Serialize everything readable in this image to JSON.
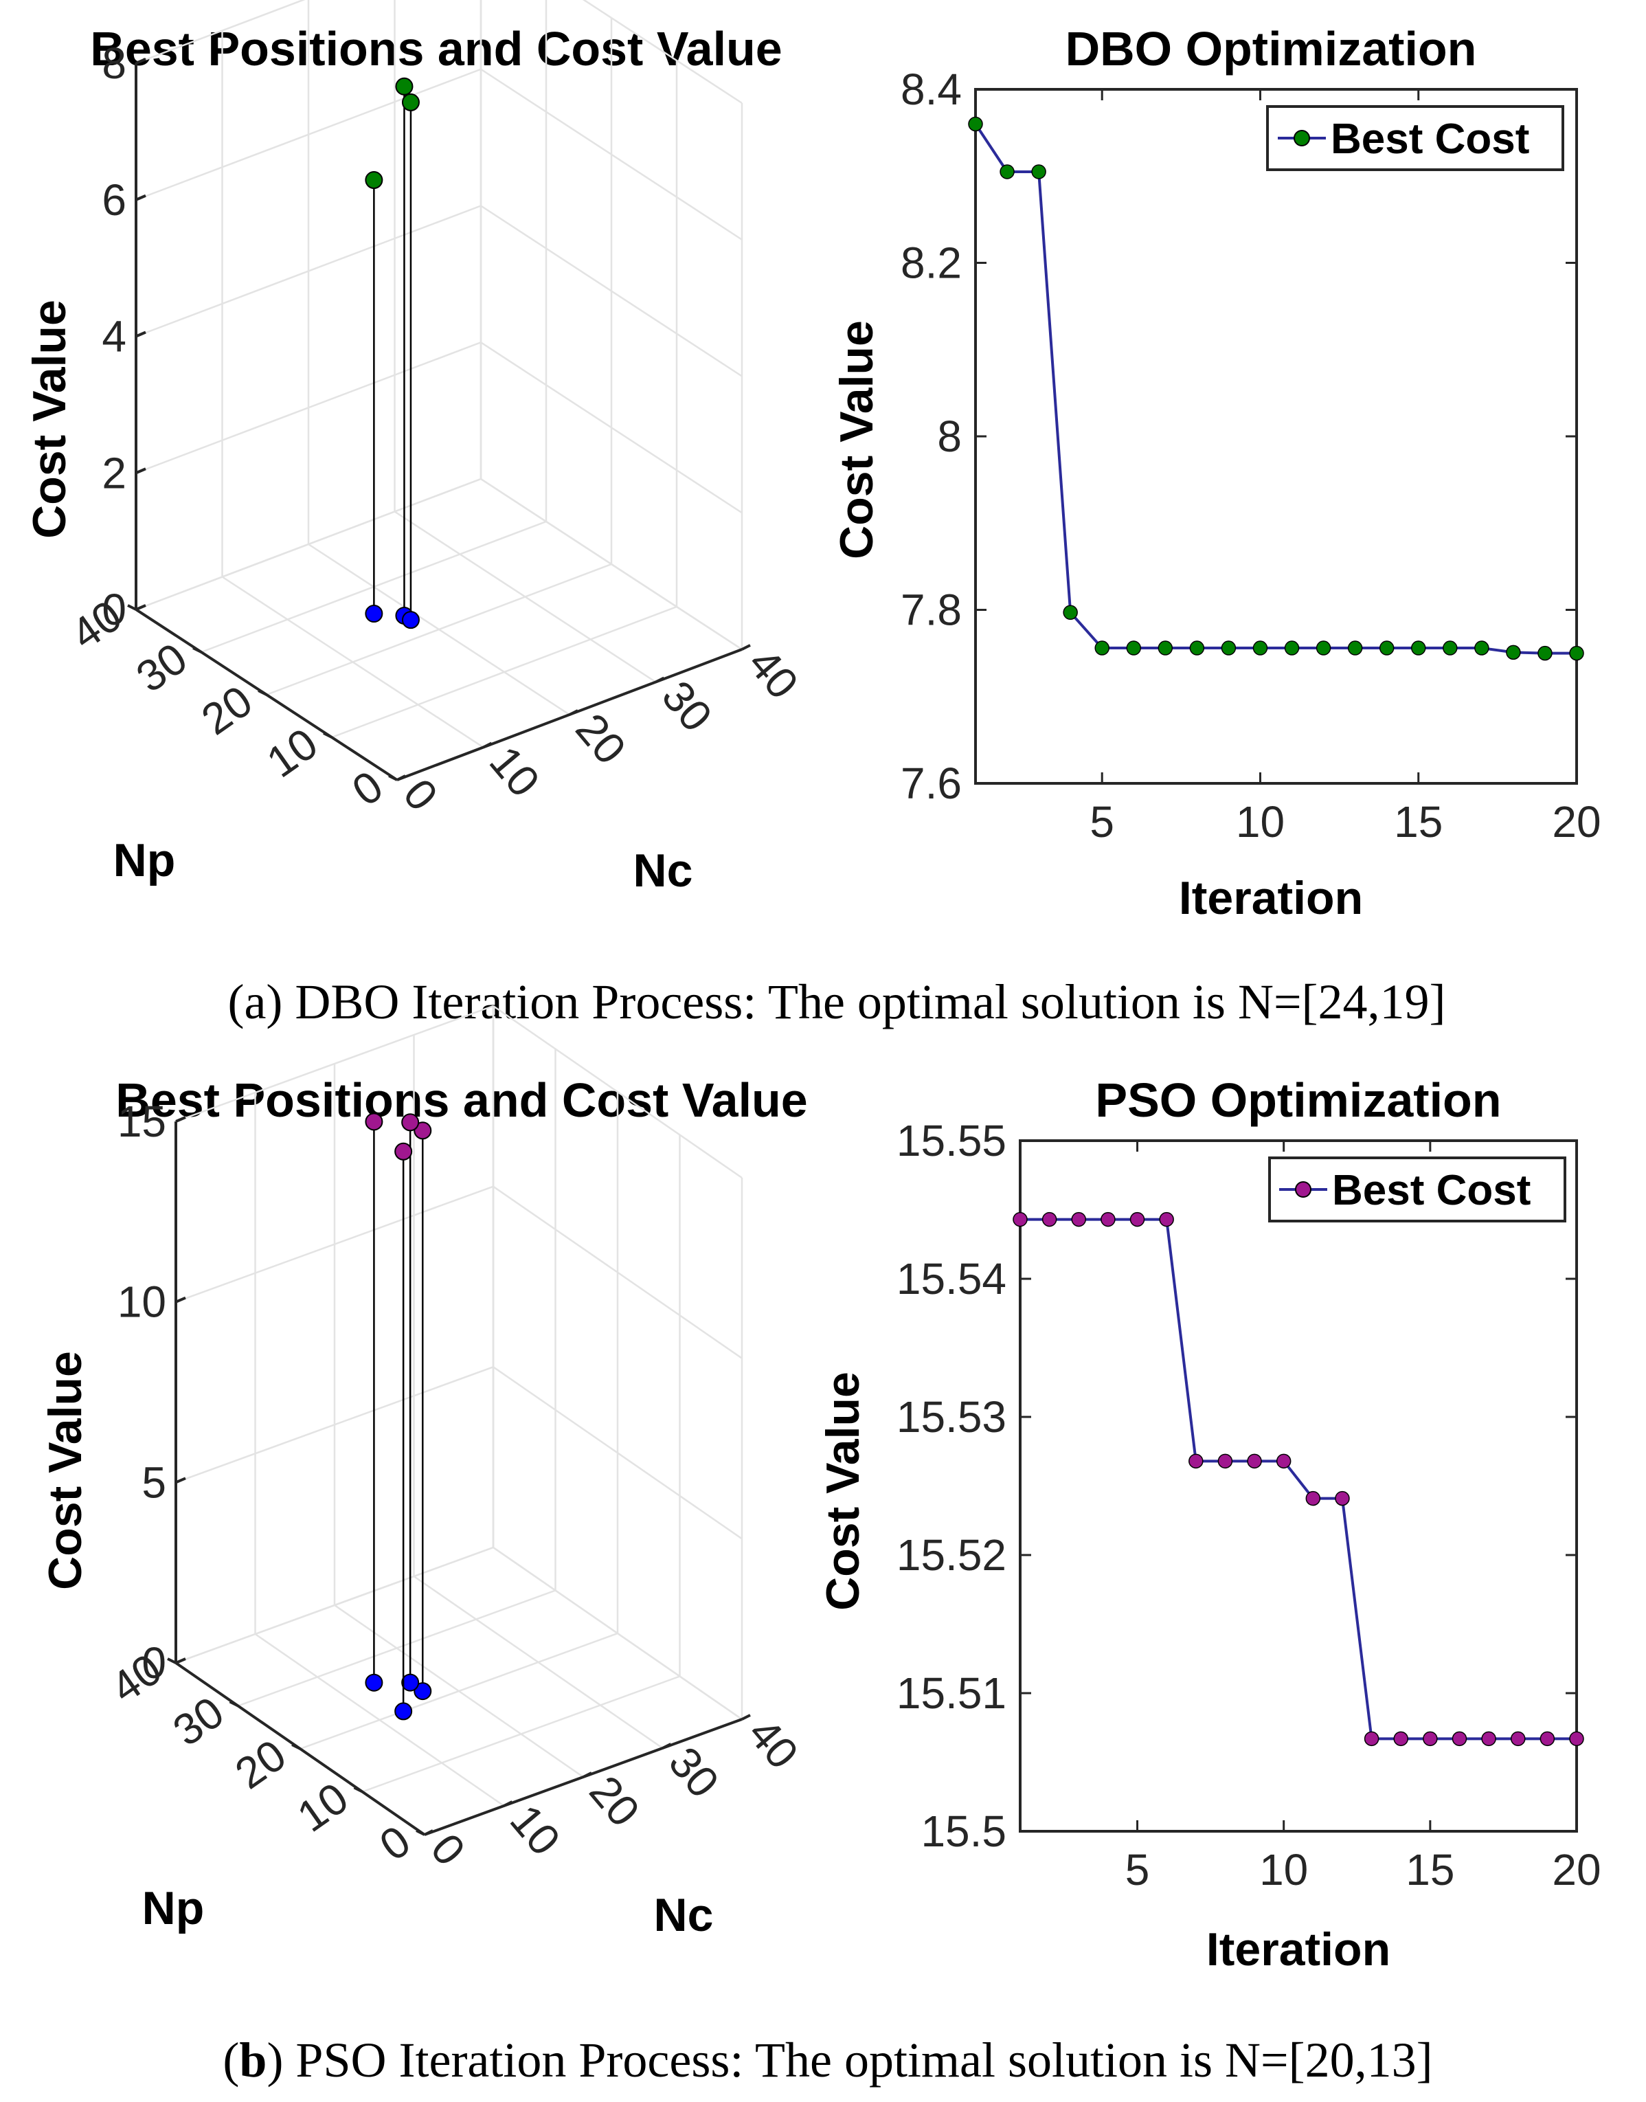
{
  "chart_data": [
    {
      "type": "scatter3d",
      "title": "Best Positions and Cost Value",
      "xlabel": "Np",
      "ylabel": "Nc",
      "zlabel": "Cost Value",
      "xlim": [
        0,
        40
      ],
      "ylim": [
        0,
        40
      ],
      "zlim": [
        0,
        8
      ],
      "x_ticks": [
        "0",
        "10",
        "20",
        "30",
        "40"
      ],
      "y_ticks": [
        "0",
        "10",
        "20",
        "30",
        "40"
      ],
      "z_ticks": [
        "0",
        "2",
        "4",
        "6",
        "8"
      ],
      "points": [
        {
          "np": 24,
          "nc": 19,
          "cost": 7.75
        },
        {
          "np": 23,
          "nc": 19,
          "cost": 7.58
        },
        {
          "np": 26,
          "nc": 17,
          "cost": 6.35
        }
      ],
      "point_color": "#008000",
      "shadow_color": "#0000ff"
    },
    {
      "type": "line",
      "title": "DBO Optimization",
      "xlabel": "Iteration",
      "ylabel": "Cost Value",
      "xlim": [
        1,
        20
      ],
      "ylim": [
        7.6,
        8.4
      ],
      "x_ticks": [
        5,
        10,
        15,
        20
      ],
      "y_ticks": [
        7.6,
        7.8,
        8.0,
        8.2,
        8.4
      ],
      "y_tick_labels": [
        "7.6",
        "7.8",
        "8",
        "8.2",
        "8.4"
      ],
      "series": [
        {
          "name": "Best Cost",
          "x": [
            1,
            2,
            3,
            4,
            5,
            6,
            7,
            8,
            9,
            10,
            11,
            12,
            13,
            14,
            15,
            16,
            17,
            18,
            19,
            20
          ],
          "values": [
            8.36,
            8.305,
            8.305,
            7.797,
            7.756,
            7.756,
            7.756,
            7.756,
            7.756,
            7.756,
            7.756,
            7.756,
            7.756,
            7.756,
            7.756,
            7.756,
            7.756,
            7.751,
            7.75,
            7.75
          ],
          "line_color": "#2b2b9a",
          "marker_color": "#008000"
        }
      ],
      "legend": "top-right"
    },
    {
      "type": "scatter3d",
      "title": "Best Positions and Cost Value",
      "xlabel": "Np",
      "ylabel": "Nc",
      "zlabel": "Cost Value",
      "xlim": [
        0,
        40
      ],
      "ylim": [
        0,
        40
      ],
      "zlim": [
        0,
        15
      ],
      "x_ticks": [
        "0",
        "10",
        "20",
        "30",
        "40"
      ],
      "y_ticks": [
        "0",
        "10",
        "20",
        "30",
        "40"
      ],
      "z_ticks": [
        "0",
        "5",
        "10",
        "15"
      ],
      "points": [
        {
          "np": 26,
          "nc": 14,
          "cost": 15.54
        },
        {
          "np": 22,
          "nc": 17,
          "cost": 15.53
        },
        {
          "np": 24,
          "nc": 17,
          "cost": 15.52
        },
        {
          "np": 20,
          "nc": 13,
          "cost": 15.507
        }
      ],
      "point_color": "#a0178f",
      "shadow_color": "#0000ff"
    },
    {
      "type": "line",
      "title": "PSO Optimization",
      "xlabel": "Iteration",
      "ylabel": "Cost Value",
      "xlim": [
        1,
        20
      ],
      "ylim": [
        15.5,
        15.55
      ],
      "x_ticks": [
        5,
        10,
        15,
        20
      ],
      "y_ticks": [
        15.5,
        15.51,
        15.52,
        15.53,
        15.54,
        15.55
      ],
      "y_tick_labels": [
        "15.5",
        "15.51",
        "15.52",
        "15.53",
        "15.54",
        "15.55"
      ],
      "series": [
        {
          "name": "Best Cost",
          "x": [
            1,
            2,
            3,
            4,
            5,
            6,
            7,
            8,
            9,
            10,
            11,
            12,
            13,
            14,
            15,
            16,
            17,
            18,
            19,
            20
          ],
          "values": [
            15.5443,
            15.5443,
            15.5443,
            15.5443,
            15.5443,
            15.5443,
            15.5268,
            15.5268,
            15.5268,
            15.5268,
            15.5241,
            15.5241,
            15.5067,
            15.5067,
            15.5067,
            15.5067,
            15.5067,
            15.5067,
            15.5067,
            15.5067
          ],
          "line_color": "#2b2b9a",
          "marker_color": "#a0178f"
        }
      ],
      "legend": "top-right"
    }
  ],
  "captions": {
    "a": {
      "label": "(a)",
      "text": "DBO Iteration Process: The optimal solution is N=[24,19]"
    },
    "b": {
      "open": "(",
      "label": "b",
      "close": ")",
      "text": "PSO Iteration Process: The optimal solution is N=[20,13]"
    }
  }
}
